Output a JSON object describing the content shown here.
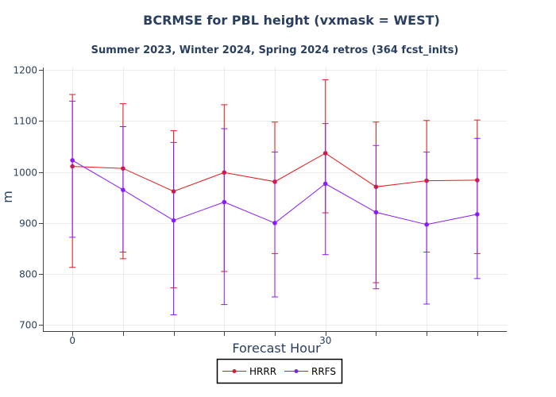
{
  "chart_data": {
    "type": "line",
    "title": "BCRMSE for PBL height (vxmask = WEST)",
    "subtitle": "Summer 2023, Winter 2024, Spring 2024 retros (364 fcst_inits)",
    "xlabel": "Forecast Hour",
    "ylabel": "m",
    "x": [
      0,
      6,
      12,
      18,
      24,
      30,
      36,
      42,
      48
    ],
    "xlim": [
      -3.5,
      51.5
    ],
    "x_ticks": [
      0,
      30
    ],
    "x_tick_labels": [
      "0",
      "30"
    ],
    "ylim": [
      688,
      1205
    ],
    "y_ticks": [
      700,
      800,
      900,
      1000,
      1100,
      1200
    ],
    "y_tick_labels": [
      "700",
      "800",
      "900",
      "1000",
      "1100",
      "1200"
    ],
    "grid": true,
    "legend_position": "bottom-center",
    "series": [
      {
        "name": "HRRR",
        "color": "#e31a1c",
        "values": [
          1011,
          1007,
          962,
          999,
          981,
          1037,
          971,
          983,
          984
        ],
        "error_low": [
          813,
          830,
          773,
          805,
          840,
          920,
          783,
          843,
          840
        ],
        "error_high": [
          1152,
          1134,
          1081,
          1132,
          1098,
          1181,
          1098,
          1101,
          1102
        ]
      },
      {
        "name": "RRFS",
        "color": "#8b1aff",
        "values": [
          1023,
          965,
          905,
          941,
          900,
          977,
          921,
          897,
          917
        ],
        "error_low": [
          872,
          843,
          720,
          740,
          755,
          838,
          771,
          741,
          791
        ],
        "error_high": [
          1139,
          1089,
          1058,
          1085,
          1039,
          1095,
          1052,
          1039,
          1066
        ]
      }
    ]
  }
}
